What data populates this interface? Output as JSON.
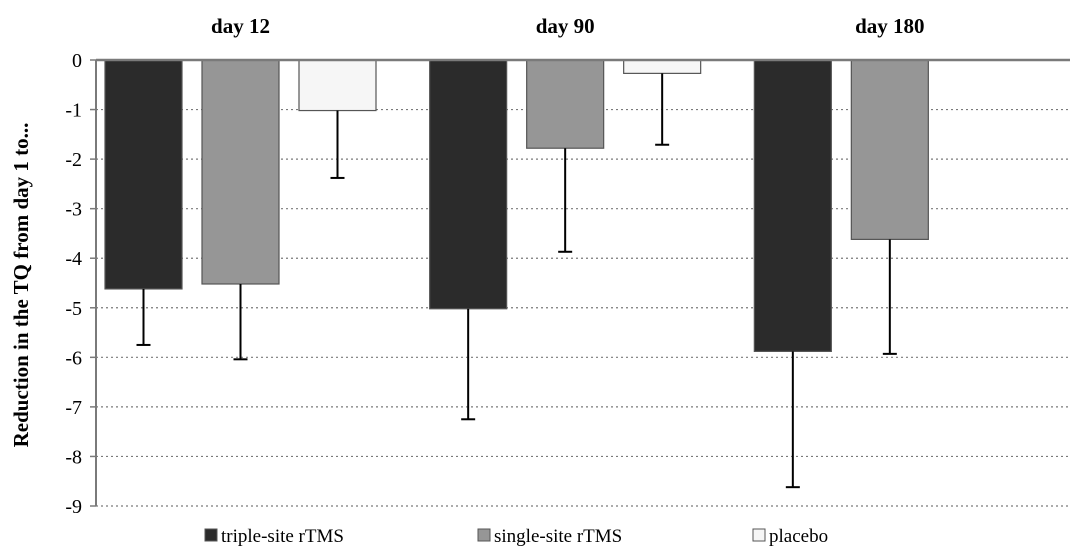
{
  "chart_data": {
    "type": "bar",
    "categories": [
      "day 12",
      "day 90",
      "day 180"
    ],
    "ylabel": "Reduction in the TQ from day 1 to...",
    "ylim": [
      -9,
      0
    ],
    "yticks": [
      0,
      -1,
      -2,
      -3,
      -4,
      -5,
      -6,
      -7,
      -8,
      -9
    ],
    "grid": true,
    "legend_position": "bottom",
    "series": [
      {
        "name": "triple-site rTMS",
        "color": "#2b2b2b",
        "values": [
          -4.62,
          -5.02,
          -5.88
        ],
        "error": [
          1.13,
          2.23,
          2.74
        ]
      },
      {
        "name": "single-site rTMS",
        "color": "#969696",
        "values": [
          -4.52,
          -1.78,
          -3.62
        ],
        "error": [
          1.52,
          2.09,
          2.31
        ]
      },
      {
        "name": "placebo",
        "color": "#f6f6f6",
        "values": [
          -1.02,
          -0.27,
          null
        ],
        "error": [
          1.36,
          1.44,
          null
        ]
      }
    ]
  }
}
